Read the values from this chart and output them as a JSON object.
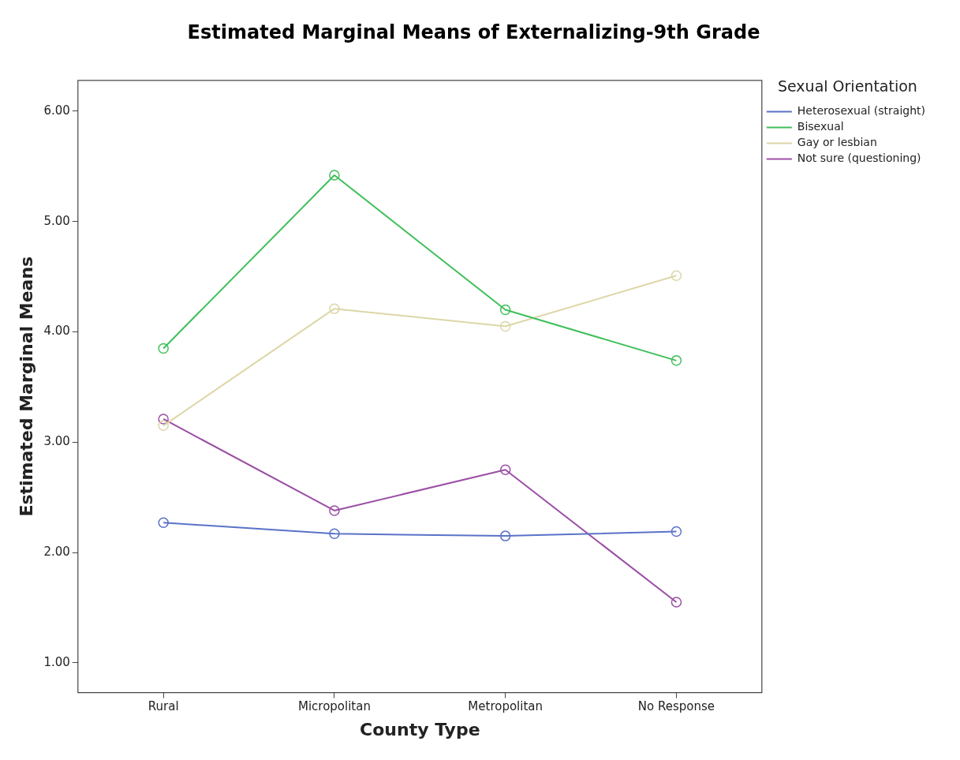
{
  "chart_data": {
    "type": "line",
    "title": "Estimated Marginal Means of Externalizing-9th Grade",
    "xlabel": "County Type",
    "ylabel": "Estimated Marginal Means",
    "legend_title": "Sexual Orientation",
    "categories": [
      "Rural",
      "Micropolitan",
      "Metropolitan",
      "No Response"
    ],
    "series": [
      {
        "name": "Heterosexual (straight)",
        "color": "#5a72c8",
        "values": [
          2.27,
          2.17,
          2.15,
          2.19
        ]
      },
      {
        "name": "Bisexual",
        "color": "#3fbf5a",
        "values": [
          3.85,
          5.42,
          4.2,
          3.74
        ]
      },
      {
        "name": "Gay or lesbian",
        "color": "#ddd6a8",
        "values": [
          3.15,
          4.21,
          4.05,
          4.51
        ]
      },
      {
        "name": "Not sure (questioning)",
        "color": "#9b4fa5",
        "values": [
          3.21,
          2.38,
          2.75,
          1.55
        ]
      }
    ],
    "ylim": [
      0.73,
      6.28
    ],
    "yticks": [
      {
        "value": 1,
        "label": "1.00"
      },
      {
        "value": 2,
        "label": "2.00"
      },
      {
        "value": 3,
        "label": "3.00"
      },
      {
        "value": 4,
        "label": "4.00"
      },
      {
        "value": 5,
        "label": "5.00"
      },
      {
        "value": 6,
        "label": "6.00"
      }
    ],
    "grid": false,
    "legend": "right",
    "marker": "circle",
    "line_style": "solid"
  }
}
